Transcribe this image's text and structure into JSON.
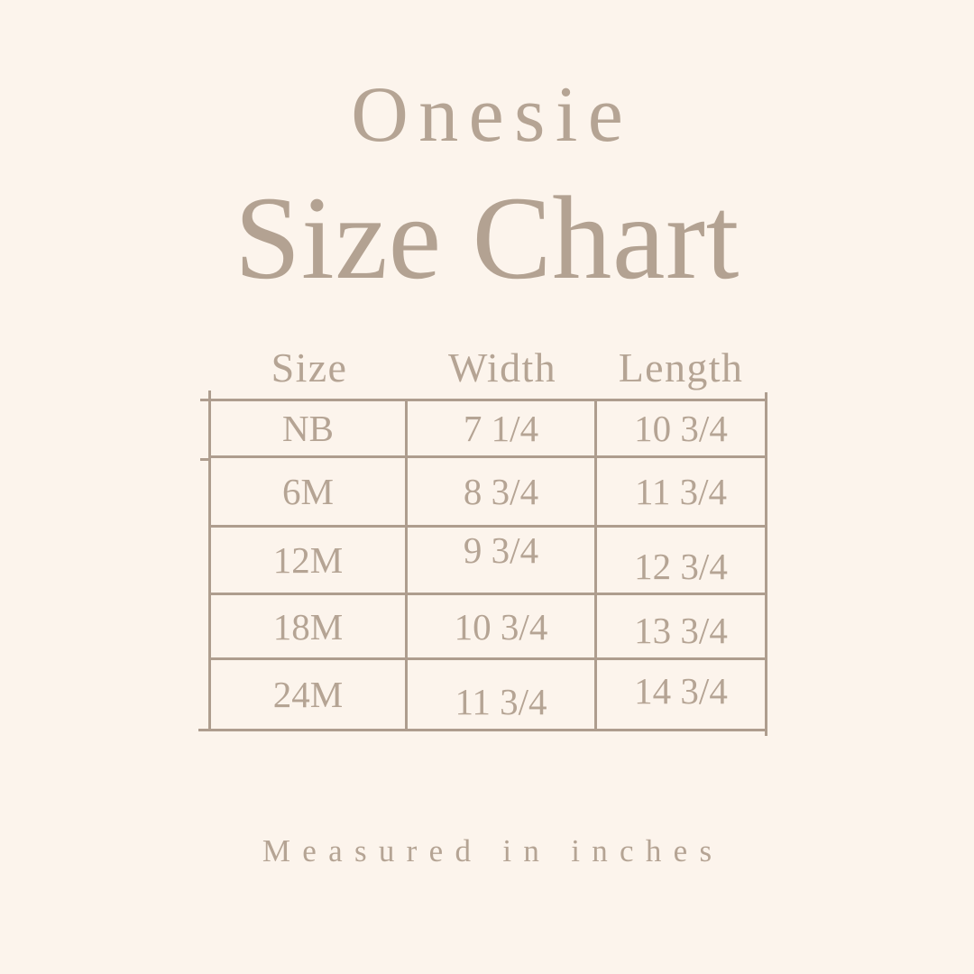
{
  "header": {
    "product": "Onesie",
    "title": "Size Chart"
  },
  "table": {
    "columns": [
      "Size",
      "Width",
      "Length"
    ],
    "rows": [
      [
        "NB",
        "7 1/4",
        "10 3/4"
      ],
      [
        "6M",
        "8 3/4",
        "11 3/4"
      ],
      [
        "12M",
        "9 3/4",
        "12 3/4"
      ],
      [
        "18M",
        "10 3/4",
        "13 3/4"
      ],
      [
        "24M",
        "11 3/4",
        "14 3/4"
      ]
    ]
  },
  "footer": {
    "note": "Measured in inches"
  },
  "colors": {
    "background": "#fcf4ec",
    "text": "#b5a494",
    "table_lines": "#ae9d8e"
  },
  "chart_data": {
    "type": "table",
    "title": "Onesie Size Chart",
    "columns": [
      "Size",
      "Width",
      "Length"
    ],
    "rows": [
      [
        "NB",
        "7 1/4",
        "10 3/4"
      ],
      [
        "6M",
        "8 3/4",
        "11 3/4"
      ],
      [
        "12M",
        "9 3/4",
        "12 3/4"
      ],
      [
        "18M",
        "10 3/4",
        "13 3/4"
      ],
      [
        "24M",
        "11 3/4",
        "14 3/4"
      ]
    ],
    "units": "inches",
    "note": "Measured in inches"
  }
}
